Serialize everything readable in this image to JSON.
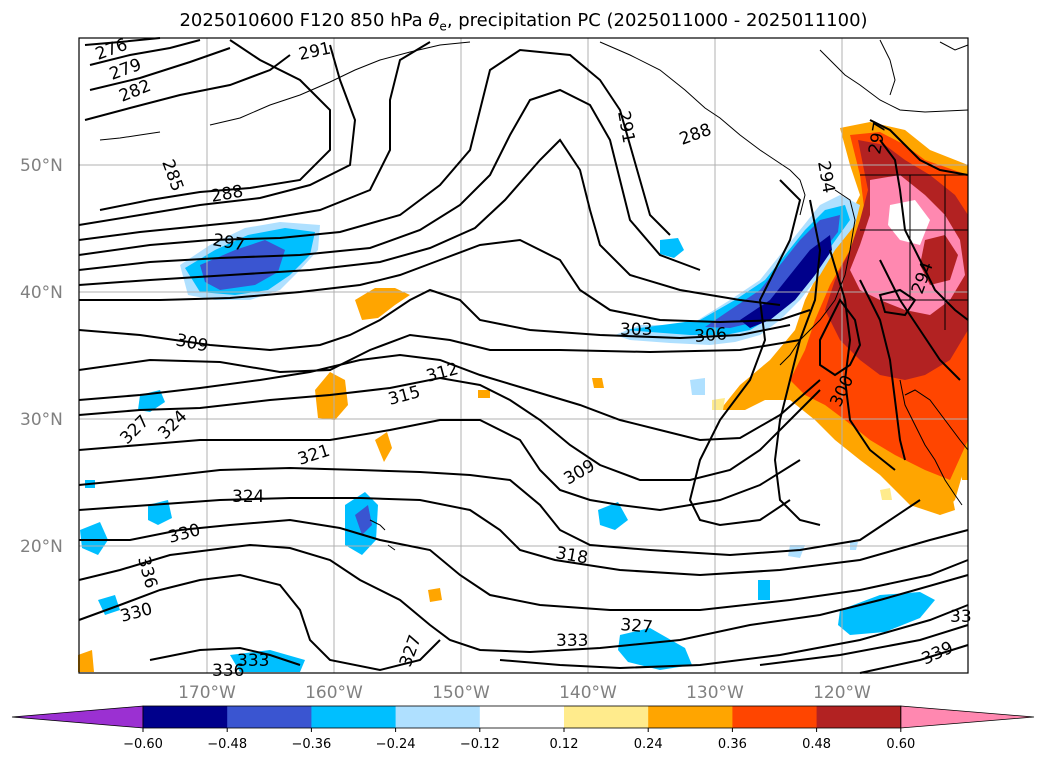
{
  "title_prefix": "2025010600 F120 850 hPa ",
  "title_symbol": "θ",
  "title_subscript": "e",
  "title_suffix": ", precipitation PC (2025011000 - 2025011100)",
  "latitude_labels": [
    "50°N",
    "40°N",
    "30°N",
    "20°N"
  ],
  "longitude_labels": [
    "170°W",
    "160°W",
    "150°W",
    "140°W",
    "130°W",
    "120°W"
  ],
  "contour_labels": [
    "276",
    "279",
    "282",
    "285",
    "288",
    "291",
    "288",
    "291",
    "294",
    "297",
    "297",
    "309",
    "303",
    "306",
    "312",
    "315",
    "321",
    "324",
    "327",
    "324",
    "309",
    "318",
    "330",
    "336",
    "330",
    "333",
    "327",
    "333",
    "336",
    "300",
    "294",
    "339",
    "33"
  ],
  "colorbar": {
    "ticks": [
      "−0.60",
      "−0.48",
      "−0.36",
      "−0.24",
      "−0.12",
      "0.12",
      "0.24",
      "0.36",
      "0.48",
      "0.60"
    ],
    "colors": [
      "#9b30d2",
      "#00008b",
      "#3a55d1",
      "#00bfff",
      "#afe0ff",
      "#ffffff",
      "#ffeb8c",
      "#ffa500",
      "#ff4500",
      "#b22222",
      "#ff88b0"
    ]
  },
  "colors": {
    "contour": "#000000",
    "grid": "#b0b0b0",
    "coast": "#000000"
  }
}
